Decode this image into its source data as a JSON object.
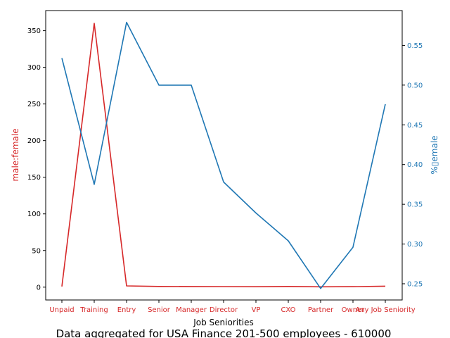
{
  "chart_data": {
    "type": "line",
    "title": "Data aggregated for USA Finance 201-500 employees - 610000",
    "xlabel": "Job Seniorities",
    "ylabel_left": "male:female",
    "ylabel_right": "%▯emale",
    "categories": [
      "Unpaid",
      "Training",
      "Entry",
      "Senior",
      "Manager",
      "Director",
      "VP",
      "CXO",
      "Partner",
      "Owner",
      "Any Job Seniority"
    ],
    "yticks_left": [
      0,
      50,
      100,
      150,
      200,
      250,
      300,
      350
    ],
    "yticks_right": [
      0.25,
      0.3,
      0.35,
      0.4,
      0.45,
      0.5,
      0.55
    ],
    "ylim_left": [
      -17.5,
      377.5
    ],
    "ylim_right": [
      0.2296,
      0.5938
    ],
    "grid": false,
    "series": [
      {
        "axis": "left",
        "color": "#d62728",
        "values": [
          0.9,
          360,
          1.7,
          1.0,
          0.9,
          0.8,
          0.6,
          1.0,
          0.5,
          0.7,
          1.3
        ]
      },
      {
        "axis": "right",
        "color": "#1f77b4",
        "values": [
          0.534,
          0.375,
          0.579,
          0.5,
          0.5,
          0.378,
          0.339,
          0.304,
          0.244,
          0.296,
          0.476
        ]
      }
    ]
  },
  "colors": {
    "left_axis": "#d62728",
    "right_axis": "#1f77b4",
    "frame": "#000000"
  }
}
